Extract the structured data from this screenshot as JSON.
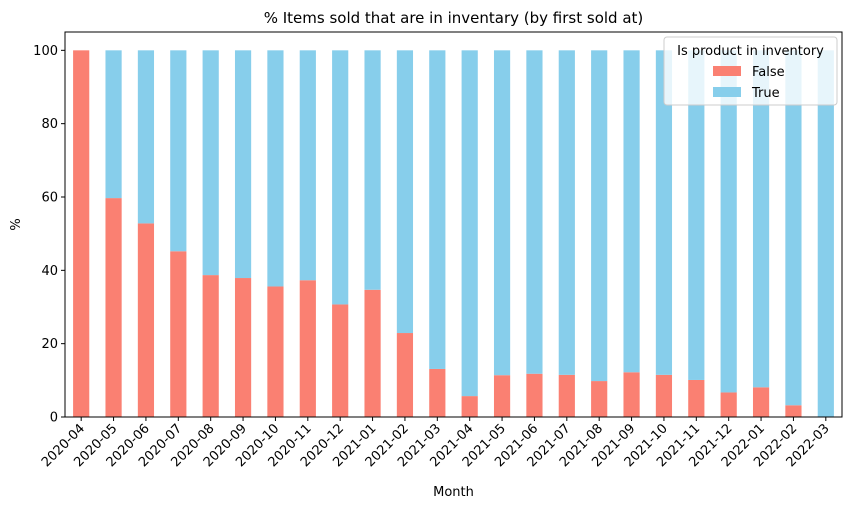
{
  "chart_data": {
    "type": "bar",
    "stacked": true,
    "title": "% Items sold that are in inventary (by first sold at)",
    "xlabel": "Month",
    "ylabel": "%",
    "ylim": [
      0,
      105
    ],
    "yticks": [
      0,
      20,
      40,
      60,
      80,
      100
    ],
    "grid": false,
    "legend": {
      "title": "Is product in inventory",
      "position": "top-right"
    },
    "categories": [
      "2020-04",
      "2020-05",
      "2020-06",
      "2020-07",
      "2020-08",
      "2020-09",
      "2020-10",
      "2020-11",
      "2020-12",
      "2021-01",
      "2021-02",
      "2021-03",
      "2021-04",
      "2021-05",
      "2021-06",
      "2021-07",
      "2021-08",
      "2021-09",
      "2021-10",
      "2021-11",
      "2021-12",
      "2022-01",
      "2022-02",
      "2022-03"
    ],
    "series": [
      {
        "name": "False",
        "color": "#fa8072",
        "values": [
          100,
          59.7,
          52.8,
          45.2,
          38.7,
          37.9,
          35.6,
          37.3,
          30.7,
          34.7,
          22.9,
          13.1,
          5.7,
          11.4,
          11.8,
          11.5,
          9.8,
          12.2,
          11.5,
          10.1,
          6.7,
          8.1,
          3.2,
          0
        ]
      },
      {
        "name": "True",
        "color": "#87ceeb",
        "values": [
          0,
          40.3,
          47.2,
          54.8,
          61.3,
          62.1,
          64.4,
          62.7,
          69.3,
          65.3,
          77.1,
          86.9,
          94.3,
          88.6,
          88.2,
          88.5,
          90.2,
          87.8,
          88.5,
          89.9,
          93.3,
          91.9,
          96.8,
          100
        ]
      }
    ]
  }
}
